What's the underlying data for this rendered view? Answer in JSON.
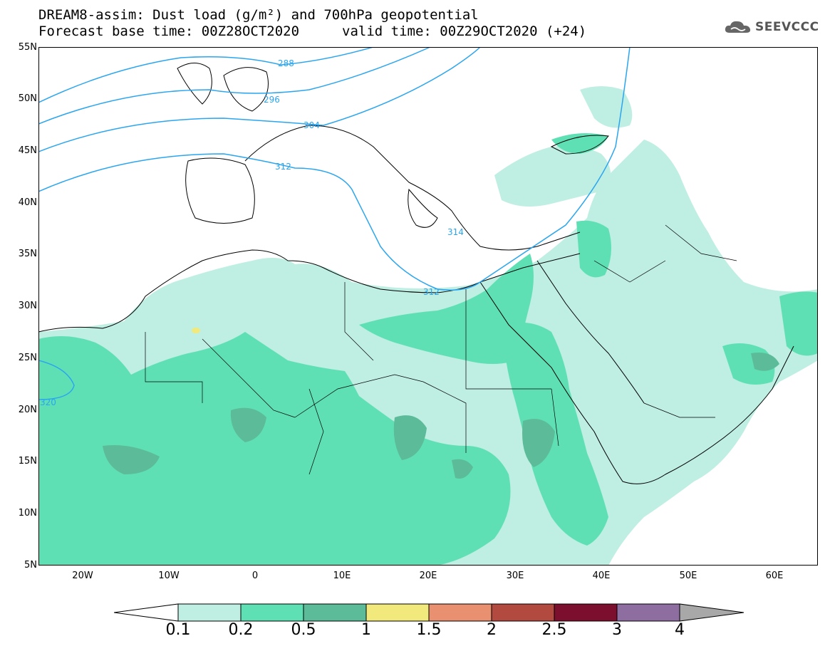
{
  "title": {
    "line1": "DREAM8-assim: Dust load (g/m²) and 700hPa geopotential",
    "line2a": "Forecast base time: 00Z28OCT2020",
    "line2b": "valid time: 00Z29OCT2020 (+24)"
  },
  "logo": {
    "text": "SEEVCCC",
    "icon": "cloud-icon"
  },
  "map": {
    "lat_labels": [
      "55N",
      "50N",
      "45N",
      "40N",
      "35N",
      "30N",
      "25N",
      "20N",
      "15N",
      "10N",
      "5N"
    ],
    "lon_labels": [
      "20W",
      "10W",
      "0",
      "10E",
      "20E",
      "30E",
      "40E",
      "50E",
      "60E"
    ],
    "contour_labels": [
      "288",
      "296",
      "304",
      "312",
      "314",
      "312",
      "320"
    ]
  },
  "colorbar": {
    "labels": [
      "0.1",
      "0.2",
      "0.5",
      "1",
      "1.5",
      "2",
      "2.5",
      "3",
      "4"
    ],
    "colors": [
      "#ffffff",
      "#bfeee2",
      "#5fe0b4",
      "#5cbb98",
      "#f2e97c",
      "#e89070",
      "#b24a40",
      "#7c0e2e",
      "#8e6ea0",
      "#a8a8a8"
    ]
  }
}
